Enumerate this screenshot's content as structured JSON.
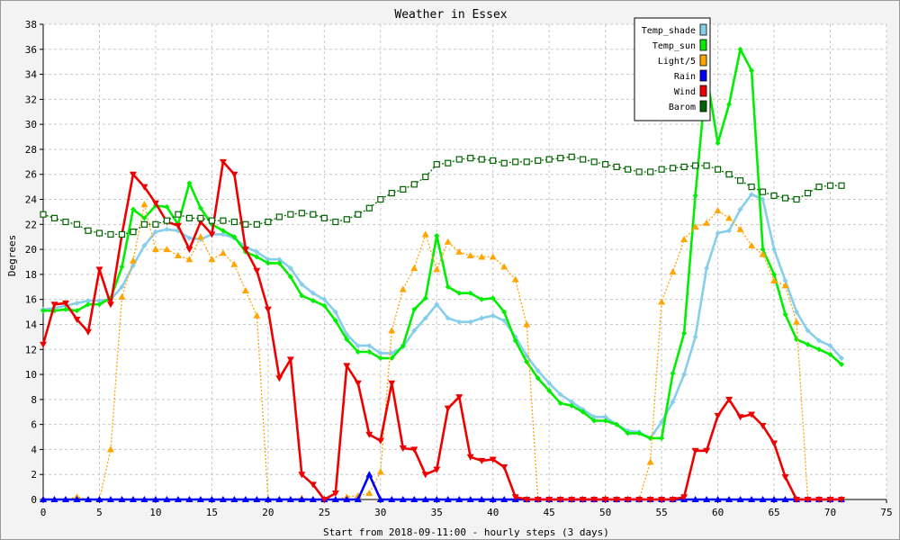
{
  "chart_data": {
    "type": "line",
    "title": "Weather in Essex",
    "xlabel": "Start from 2018-09-11:00 - hourly steps (3 days)",
    "ylabel": "Degrees",
    "xlim": [
      0,
      75
    ],
    "ylim": [
      0,
      38
    ],
    "xticks": [
      0,
      5,
      10,
      15,
      20,
      25,
      30,
      35,
      40,
      45,
      50,
      55,
      60,
      65,
      70,
      75
    ],
    "yticks": [
      0,
      2,
      4,
      6,
      8,
      10,
      12,
      14,
      16,
      18,
      20,
      22,
      24,
      26,
      28,
      30,
      32,
      34,
      36,
      38
    ],
    "grid": true,
    "legend_position": "top-right",
    "series": [
      {
        "name": "Temp_shade",
        "color": "#87ceeb",
        "style": "solid",
        "marker": "diamond",
        "x": [
          0,
          1,
          2,
          3,
          4,
          5,
          6,
          7,
          8,
          9,
          10,
          11,
          12,
          13,
          14,
          15,
          16,
          17,
          18,
          19,
          20,
          21,
          22,
          23,
          24,
          25,
          26,
          27,
          28,
          29,
          30,
          31,
          32,
          33,
          34,
          35,
          36,
          37,
          38,
          39,
          40,
          41,
          42,
          43,
          44,
          45,
          46,
          47,
          48,
          49,
          50,
          51,
          52,
          53,
          54,
          55,
          56,
          57,
          58,
          59,
          60,
          61,
          62,
          63,
          64,
          65,
          66,
          67,
          68,
          69,
          70,
          71
        ],
        "y": [
          15.2,
          15.3,
          15.5,
          15.7,
          15.9,
          15.9,
          16.0,
          17.0,
          18.7,
          20.3,
          21.4,
          21.6,
          21.5,
          20.9,
          20.8,
          21.2,
          21.2,
          20.9,
          20.2,
          19.8,
          19.2,
          19.2,
          18.5,
          17.2,
          16.5,
          16.0,
          15.0,
          13.2,
          12.3,
          12.3,
          11.7,
          11.7,
          12.2,
          13.5,
          14.5,
          15.6,
          14.5,
          14.2,
          14.2,
          14.5,
          14.7,
          14.3,
          13.0,
          11.5,
          10.3,
          9.3,
          8.4,
          7.8,
          7.2,
          6.6,
          6.6,
          6.0,
          5.5,
          5.4,
          4.9,
          6.2,
          7.8,
          10.0,
          13.0,
          18.5,
          21.3,
          21.5,
          23.2,
          24.4,
          24.0,
          20.0,
          17.5,
          15.0,
          13.5,
          12.7,
          12.3,
          11.3
        ]
      },
      {
        "name": "Temp_sun",
        "color": "#00ee00",
        "style": "solid",
        "marker": "diamond",
        "x": [
          0,
          1,
          2,
          3,
          4,
          5,
          6,
          7,
          8,
          9,
          10,
          11,
          12,
          13,
          14,
          15,
          16,
          17,
          18,
          19,
          20,
          21,
          22,
          23,
          24,
          25,
          26,
          27,
          28,
          29,
          30,
          31,
          32,
          33,
          34,
          35,
          36,
          37,
          38,
          39,
          40,
          41,
          42,
          43,
          44,
          45,
          46,
          47,
          48,
          49,
          50,
          51,
          52,
          53,
          54,
          55,
          56,
          57,
          58,
          59,
          60,
          61,
          62,
          63,
          64,
          65,
          66,
          67,
          68,
          69,
          70,
          71
        ],
        "y": [
          15.1,
          15.1,
          15.2,
          15.1,
          15.6,
          15.6,
          16.1,
          18.6,
          23.2,
          22.5,
          23.5,
          23.4,
          22.0,
          25.3,
          23.3,
          22.0,
          21.5,
          21.0,
          19.8,
          19.4,
          18.9,
          18.9,
          17.8,
          16.3,
          15.9,
          15.5,
          14.3,
          12.8,
          11.8,
          11.8,
          11.3,
          11.3,
          12.3,
          15.2,
          16.1,
          21.1,
          17.0,
          16.5,
          16.5,
          16.0,
          16.1,
          15.0,
          12.7,
          11.0,
          9.7,
          8.7,
          7.7,
          7.5,
          7.0,
          6.3,
          6.3,
          6.0,
          5.3,
          5.3,
          4.9,
          4.9,
          10.1,
          13.3,
          24.3,
          34.0,
          28.5,
          31.6,
          36.0,
          34.3,
          20.0,
          18.0,
          14.8,
          12.8,
          12.4,
          12.0,
          11.6,
          10.8
        ]
      },
      {
        "name": "Light/5",
        "color": "#ffa500",
        "style": "dotted",
        "marker": "triangle",
        "x": [
          0,
          1,
          2,
          3,
          4,
          5,
          6,
          7,
          8,
          9,
          10,
          11,
          12,
          13,
          14,
          15,
          16,
          17,
          18,
          19,
          20,
          21,
          22,
          23,
          24,
          25,
          26,
          27,
          28,
          29,
          30,
          31,
          32,
          33,
          34,
          35,
          36,
          37,
          38,
          39,
          40,
          41,
          42,
          43,
          44,
          45,
          46,
          47,
          48,
          49,
          50,
          51,
          52,
          53,
          54,
          55,
          56,
          57,
          58,
          59,
          60,
          61,
          62,
          63,
          64,
          65,
          66,
          67,
          68,
          69,
          70,
          71
        ],
        "y": [
          0,
          0,
          0,
          0.2,
          0,
          0,
          4.0,
          16.2,
          19.1,
          23.6,
          20.0,
          20.0,
          19.5,
          19.2,
          21.0,
          19.2,
          19.7,
          18.8,
          16.7,
          14.7,
          0,
          0,
          0,
          0.1,
          0,
          0,
          0,
          0.2,
          0.3,
          0.5,
          2.2,
          13.5,
          16.8,
          18.5,
          21.2,
          18.4,
          20.6,
          19.8,
          19.5,
          19.4,
          19.4,
          18.6,
          17.6,
          14.0,
          0,
          0,
          0,
          0,
          0,
          0,
          0.1,
          0,
          0,
          0,
          3.0,
          15.8,
          18.2,
          20.8,
          21.8,
          22.1,
          23.1,
          22.5,
          21.6,
          20.3,
          19.6,
          17.5,
          17.1,
          14.2,
          0,
          0,
          0,
          0
        ]
      },
      {
        "name": "Rain",
        "color": "#0000ff",
        "style": "solid",
        "marker": "triangle",
        "x": [
          0,
          1,
          2,
          3,
          4,
          5,
          6,
          7,
          8,
          9,
          10,
          11,
          12,
          13,
          14,
          15,
          16,
          17,
          18,
          19,
          20,
          21,
          22,
          23,
          24,
          25,
          26,
          27,
          28,
          29,
          30,
          31,
          32,
          33,
          34,
          35,
          36,
          37,
          38,
          39,
          40,
          41,
          42,
          43,
          44,
          45,
          46,
          47,
          48,
          49,
          50,
          51,
          52,
          53,
          54,
          55,
          56,
          57,
          58,
          59,
          60,
          61,
          62,
          63,
          64,
          65,
          66,
          67,
          68,
          69,
          70,
          71
        ],
        "y": [
          0,
          0,
          0,
          0,
          0,
          0,
          0,
          0,
          0,
          0,
          0,
          0,
          0,
          0,
          0,
          0,
          0,
          0,
          0,
          0,
          0,
          0,
          0,
          0,
          0,
          0,
          0,
          0,
          0,
          2.0,
          0,
          0,
          0,
          0,
          0,
          0,
          0,
          0,
          0,
          0,
          0,
          0,
          0,
          0,
          0,
          0,
          0,
          0,
          0,
          0,
          0,
          0,
          0,
          0,
          0,
          0,
          0,
          0,
          0,
          0,
          0,
          0,
          0,
          0,
          0,
          0,
          0,
          0,
          0,
          0,
          0,
          0
        ]
      },
      {
        "name": "Wind",
        "color": "#ee0000",
        "style": "solid",
        "marker": "triangle-down",
        "x": [
          0,
          1,
          2,
          3,
          4,
          5,
          6,
          7,
          8,
          9,
          10,
          11,
          12,
          13,
          14,
          15,
          16,
          17,
          18,
          19,
          20,
          21,
          22,
          23,
          24,
          25,
          26,
          27,
          28,
          29,
          30,
          31,
          32,
          33,
          34,
          35,
          36,
          37,
          38,
          39,
          40,
          41,
          42,
          43,
          44,
          45,
          46,
          47,
          48,
          49,
          50,
          51,
          52,
          53,
          54,
          55,
          56,
          57,
          58,
          59,
          60,
          61,
          62,
          63,
          64,
          65,
          66,
          67,
          68,
          69,
          70,
          71
        ],
        "y": [
          12.4,
          15.6,
          15.7,
          14.4,
          13.4,
          18.4,
          15.6,
          21.2,
          26.0,
          25.0,
          23.7,
          22.2,
          21.9,
          20.0,
          22.2,
          21.2,
          27.0,
          26.0,
          20.0,
          18.3,
          15.2,
          9.7,
          11.2,
          2.0,
          1.2,
          0,
          0.5,
          10.7,
          9.3,
          5.2,
          4.7,
          9.3,
          4.1,
          4.0,
          2.0,
          2.4,
          7.3,
          8.2,
          3.4,
          3.1,
          3.2,
          2.6,
          0.2,
          0,
          0,
          0,
          0,
          0,
          0,
          0,
          0,
          0,
          0,
          0,
          0,
          0,
          0,
          0.2,
          3.9,
          3.9,
          6.7,
          8.0,
          6.6,
          6.8,
          5.9,
          4.5,
          1.8,
          0,
          0,
          0,
          0,
          0
        ]
      },
      {
        "name": "Barom",
        "color": "#006400",
        "style": "dotted",
        "marker": "square",
        "x": [
          0,
          1,
          2,
          3,
          4,
          5,
          6,
          7,
          8,
          9,
          10,
          11,
          12,
          13,
          14,
          15,
          16,
          17,
          18,
          19,
          20,
          21,
          22,
          23,
          24,
          25,
          26,
          27,
          28,
          29,
          30,
          31,
          32,
          33,
          34,
          35,
          36,
          37,
          38,
          39,
          40,
          41,
          42,
          43,
          44,
          45,
          46,
          47,
          48,
          49,
          50,
          51,
          52,
          53,
          54,
          55,
          56,
          57,
          58,
          59,
          60,
          61,
          62,
          63,
          64,
          65,
          66,
          67,
          68,
          69,
          70,
          71
        ],
        "y": [
          22.8,
          22.5,
          22.2,
          22.0,
          21.5,
          21.3,
          21.2,
          21.2,
          21.4,
          22.0,
          22.0,
          22.3,
          22.8,
          22.5,
          22.5,
          22.3,
          22.3,
          22.2,
          22.0,
          22.0,
          22.2,
          22.6,
          22.8,
          22.9,
          22.8,
          22.5,
          22.2,
          22.4,
          22.8,
          23.3,
          24.0,
          24.5,
          24.8,
          25.2,
          25.8,
          26.8,
          26.9,
          27.2,
          27.3,
          27.2,
          27.1,
          26.9,
          27.0,
          27.0,
          27.1,
          27.2,
          27.3,
          27.4,
          27.2,
          27.0,
          26.8,
          26.6,
          26.4,
          26.2,
          26.2,
          26.4,
          26.5,
          26.6,
          26.7,
          26.7,
          26.4,
          26.0,
          25.5,
          25.0,
          24.6,
          24.3,
          24.1,
          24.0,
          24.5,
          25.0,
          25.1,
          25.1
        ]
      }
    ]
  }
}
